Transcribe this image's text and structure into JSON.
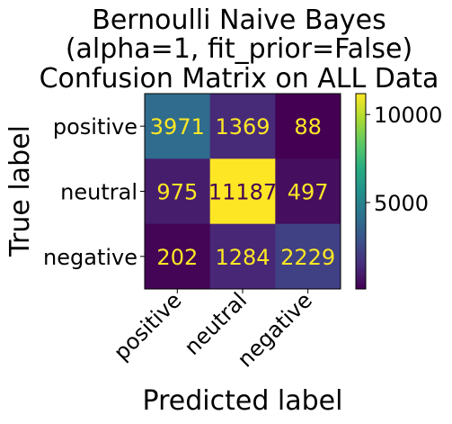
{
  "chart_data": {
    "type": "heatmap",
    "title_lines": [
      "Bernoulli Naive Bayes",
      "(alpha=1, fit_prior=False)",
      "Confusion Matrix on ALL Data"
    ],
    "xlabel": "Predicted label",
    "ylabel": "True label",
    "row_labels": [
      "positive",
      "neutral",
      "negative"
    ],
    "col_labels": [
      "positive",
      "neutral",
      "negative"
    ],
    "values": [
      [
        3971,
        1369,
        88
      ],
      [
        975,
        11187,
        497
      ],
      [
        202,
        1284,
        2229
      ]
    ],
    "colormap": "viridis",
    "colorbar": {
      "ticks": [
        5000,
        10000
      ],
      "range": [
        88,
        11187
      ]
    },
    "text_colors": {
      "light_cell": "#440154",
      "dark_cell": "#fde725"
    }
  }
}
